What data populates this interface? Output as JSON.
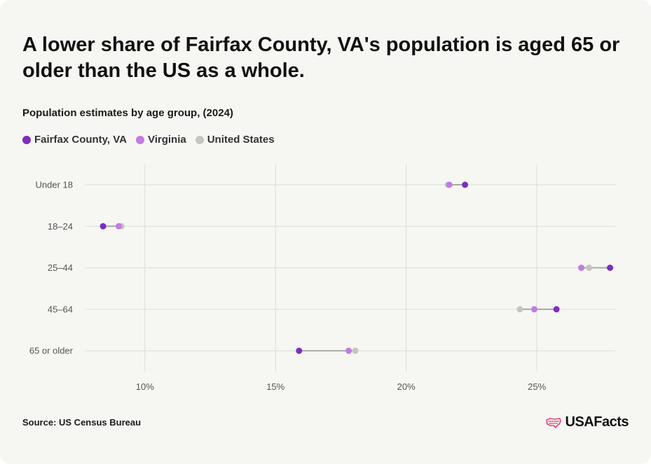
{
  "title": "A lower share of Fairfax County, VA's population is aged 65 or older than the US as a whole.",
  "subtitle": "Population estimates by age group, (2024)",
  "source": "Source: US Census Bureau",
  "brand": "USAFacts",
  "colors": {
    "fairfax": "#7b2fbe",
    "virginia": "#c27be0",
    "united_states": "#c5c5c0",
    "connector": "#a9a9a4",
    "grid": "#dcdcd8",
    "brand_icon": "#e0457b"
  },
  "chart_data": {
    "type": "scatter",
    "style": "dot-plot",
    "categories": [
      "Under 18",
      "18–24",
      "25–44",
      "45–64",
      "65 or older"
    ],
    "series": [
      {
        "name": "Fairfax County, VA",
        "color": "#7b2fbe",
        "values": [
          22.25,
          8.4,
          27.8,
          25.75,
          15.9
        ]
      },
      {
        "name": "Virginia",
        "color": "#c27be0",
        "values": [
          21.65,
          9.0,
          26.7,
          24.9,
          17.8
        ]
      },
      {
        "name": "United States",
        "color": "#c5c5c0",
        "values": [
          21.6,
          9.1,
          27.0,
          24.35,
          18.05
        ]
      }
    ],
    "xticks": [
      "10%",
      "15%",
      "20%",
      "25%"
    ],
    "xtick_values": [
      10,
      15,
      20,
      25
    ],
    "xlim": [
      7.7,
      28.0
    ],
    "grid": true,
    "legend_position": "top-left"
  }
}
